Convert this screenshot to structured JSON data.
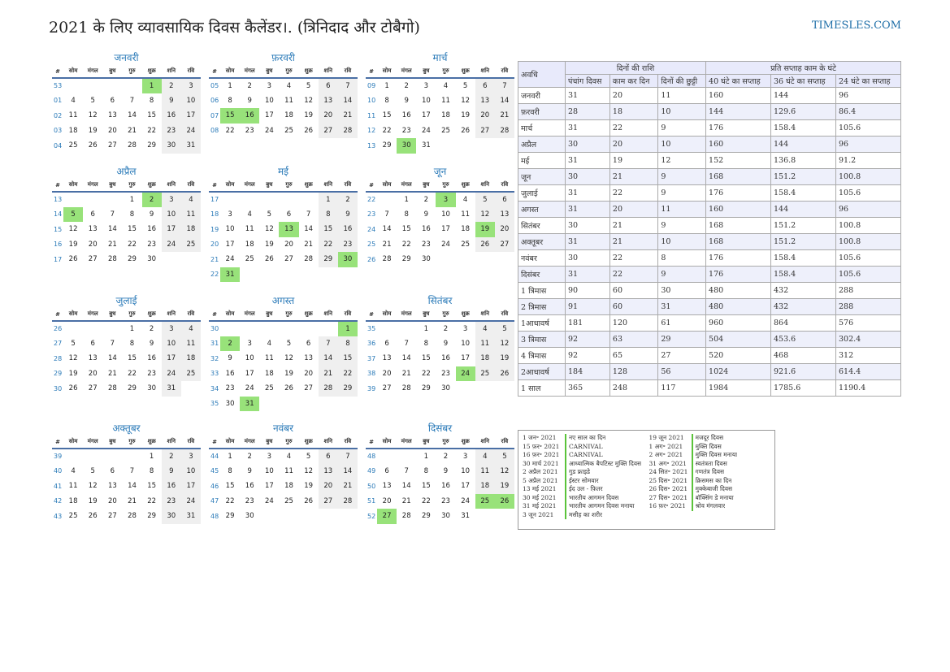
{
  "title": "2021 के लिए व्यावसायिक दिवस कैलेंडर।. (त्रिनिदाद और टोबैगो)",
  "site": "TIMESLES.COM",
  "weekday_headers": [
    "#",
    "सोम",
    "मंगल",
    "बुध",
    "गुरु",
    "शुक्र",
    "शनि",
    "रवि"
  ],
  "months": [
    {
      "name": "जनवरी",
      "weeks": [
        {
          "wk": "53",
          "days": [
            "",
            "",
            "",
            "",
            "1",
            "2",
            "3"
          ]
        },
        {
          "wk": "01",
          "days": [
            "4",
            "5",
            "6",
            "7",
            "8",
            "9",
            "10"
          ]
        },
        {
          "wk": "02",
          "days": [
            "11",
            "12",
            "13",
            "14",
            "15",
            "16",
            "17"
          ]
        },
        {
          "wk": "03",
          "days": [
            "18",
            "19",
            "20",
            "21",
            "22",
            "23",
            "24"
          ]
        },
        {
          "wk": "04",
          "days": [
            "25",
            "26",
            "27",
            "28",
            "29",
            "30",
            "31"
          ]
        }
      ],
      "holidays": [
        "1"
      ]
    },
    {
      "name": "फ़रवरी",
      "weeks": [
        {
          "wk": "05",
          "days": [
            "1",
            "2",
            "3",
            "4",
            "5",
            "6",
            "7"
          ]
        },
        {
          "wk": "06",
          "days": [
            "8",
            "9",
            "10",
            "11",
            "12",
            "13",
            "14"
          ]
        },
        {
          "wk": "07",
          "days": [
            "15",
            "16",
            "17",
            "18",
            "19",
            "20",
            "21"
          ]
        },
        {
          "wk": "08",
          "days": [
            "22",
            "23",
            "24",
            "25",
            "26",
            "27",
            "28"
          ]
        }
      ],
      "holidays": [
        "15",
        "16"
      ]
    },
    {
      "name": "मार्च",
      "weeks": [
        {
          "wk": "09",
          "days": [
            "1",
            "2",
            "3",
            "4",
            "5",
            "6",
            "7"
          ]
        },
        {
          "wk": "10",
          "days": [
            "8",
            "9",
            "10",
            "11",
            "12",
            "13",
            "14"
          ]
        },
        {
          "wk": "11",
          "days": [
            "15",
            "16",
            "17",
            "18",
            "19",
            "20",
            "21"
          ]
        },
        {
          "wk": "12",
          "days": [
            "22",
            "23",
            "24",
            "25",
            "26",
            "27",
            "28"
          ]
        },
        {
          "wk": "13",
          "days": [
            "29",
            "30",
            "31",
            "",
            "",
            "",
            ""
          ]
        }
      ],
      "holidays": [
        "30"
      ]
    },
    {
      "name": "अप्रैल",
      "weeks": [
        {
          "wk": "13",
          "days": [
            "",
            "",
            "",
            "1",
            "2",
            "3",
            "4"
          ]
        },
        {
          "wk": "14",
          "days": [
            "5",
            "6",
            "7",
            "8",
            "9",
            "10",
            "11"
          ]
        },
        {
          "wk": "15",
          "days": [
            "12",
            "13",
            "14",
            "15",
            "16",
            "17",
            "18"
          ]
        },
        {
          "wk": "16",
          "days": [
            "19",
            "20",
            "21",
            "22",
            "23",
            "24",
            "25"
          ]
        },
        {
          "wk": "17",
          "days": [
            "26",
            "27",
            "28",
            "29",
            "30",
            "",
            ""
          ]
        }
      ],
      "holidays": [
        "2",
        "5"
      ]
    },
    {
      "name": "मई",
      "weeks": [
        {
          "wk": "17",
          "days": [
            "",
            "",
            "",
            "",
            "",
            "1",
            "2"
          ]
        },
        {
          "wk": "18",
          "days": [
            "3",
            "4",
            "5",
            "6",
            "7",
            "8",
            "9"
          ]
        },
        {
          "wk": "19",
          "days": [
            "10",
            "11",
            "12",
            "13",
            "14",
            "15",
            "16"
          ]
        },
        {
          "wk": "20",
          "days": [
            "17",
            "18",
            "19",
            "20",
            "21",
            "22",
            "23"
          ]
        },
        {
          "wk": "21",
          "days": [
            "24",
            "25",
            "26",
            "27",
            "28",
            "29",
            "30"
          ]
        },
        {
          "wk": "22",
          "days": [
            "31",
            "",
            "",
            "",
            "",
            "",
            ""
          ]
        }
      ],
      "holidays": [
        "13",
        "30",
        "31"
      ]
    },
    {
      "name": "जून",
      "weeks": [
        {
          "wk": "22",
          "days": [
            "",
            "1",
            "2",
            "3",
            "4",
            "5",
            "6"
          ]
        },
        {
          "wk": "23",
          "days": [
            "7",
            "8",
            "9",
            "10",
            "11",
            "12",
            "13"
          ]
        },
        {
          "wk": "24",
          "days": [
            "14",
            "15",
            "16",
            "17",
            "18",
            "19",
            "20"
          ]
        },
        {
          "wk": "25",
          "days": [
            "21",
            "22",
            "23",
            "24",
            "25",
            "26",
            "27"
          ]
        },
        {
          "wk": "26",
          "days": [
            "28",
            "29",
            "30",
            "",
            "",
            "",
            ""
          ]
        }
      ],
      "holidays": [
        "3",
        "19"
      ]
    },
    {
      "name": "जुलाई",
      "weeks": [
        {
          "wk": "26",
          "days": [
            "",
            "",
            "",
            "1",
            "2",
            "3",
            "4"
          ]
        },
        {
          "wk": "27",
          "days": [
            "5",
            "6",
            "7",
            "8",
            "9",
            "10",
            "11"
          ]
        },
        {
          "wk": "28",
          "days": [
            "12",
            "13",
            "14",
            "15",
            "16",
            "17",
            "18"
          ]
        },
        {
          "wk": "29",
          "days": [
            "19",
            "20",
            "21",
            "22",
            "23",
            "24",
            "25"
          ]
        },
        {
          "wk": "30",
          "days": [
            "26",
            "27",
            "28",
            "29",
            "30",
            "31",
            ""
          ]
        }
      ],
      "holidays": []
    },
    {
      "name": "अगस्त",
      "weeks": [
        {
          "wk": "30",
          "days": [
            "",
            "",
            "",
            "",
            "",
            "",
            "1"
          ]
        },
        {
          "wk": "31",
          "days": [
            "2",
            "3",
            "4",
            "5",
            "6",
            "7",
            "8"
          ]
        },
        {
          "wk": "32",
          "days": [
            "9",
            "10",
            "11",
            "12",
            "13",
            "14",
            "15"
          ]
        },
        {
          "wk": "33",
          "days": [
            "16",
            "17",
            "18",
            "19",
            "20",
            "21",
            "22"
          ]
        },
        {
          "wk": "34",
          "days": [
            "23",
            "24",
            "25",
            "26",
            "27",
            "28",
            "29"
          ]
        },
        {
          "wk": "35",
          "days": [
            "30",
            "31",
            "",
            "",
            "",
            "",
            ""
          ]
        }
      ],
      "holidays": [
        "1",
        "2",
        "31"
      ]
    },
    {
      "name": "सितंबर",
      "weeks": [
        {
          "wk": "35",
          "days": [
            "",
            "",
            "1",
            "2",
            "3",
            "4",
            "5"
          ]
        },
        {
          "wk": "36",
          "days": [
            "6",
            "7",
            "8",
            "9",
            "10",
            "11",
            "12"
          ]
        },
        {
          "wk": "37",
          "days": [
            "13",
            "14",
            "15",
            "16",
            "17",
            "18",
            "19"
          ]
        },
        {
          "wk": "38",
          "days": [
            "20",
            "21",
            "22",
            "23",
            "24",
            "25",
            "26"
          ]
        },
        {
          "wk": "39",
          "days": [
            "27",
            "28",
            "29",
            "30",
            "",
            "",
            ""
          ]
        }
      ],
      "holidays": [
        "24"
      ]
    },
    {
      "name": "अक्तूबर",
      "weeks": [
        {
          "wk": "39",
          "days": [
            "",
            "",
            "",
            "",
            "1",
            "2",
            "3"
          ]
        },
        {
          "wk": "40",
          "days": [
            "4",
            "5",
            "6",
            "7",
            "8",
            "9",
            "10"
          ]
        },
        {
          "wk": "41",
          "days": [
            "11",
            "12",
            "13",
            "14",
            "15",
            "16",
            "17"
          ]
        },
        {
          "wk": "42",
          "days": [
            "18",
            "19",
            "20",
            "21",
            "22",
            "23",
            "24"
          ]
        },
        {
          "wk": "43",
          "days": [
            "25",
            "26",
            "27",
            "28",
            "29",
            "30",
            "31"
          ]
        }
      ],
      "holidays": []
    },
    {
      "name": "नवंबर",
      "weeks": [
        {
          "wk": "44",
          "days": [
            "1",
            "2",
            "3",
            "4",
            "5",
            "6",
            "7"
          ]
        },
        {
          "wk": "45",
          "days": [
            "8",
            "9",
            "10",
            "11",
            "12",
            "13",
            "14"
          ]
        },
        {
          "wk": "46",
          "days": [
            "15",
            "16",
            "17",
            "18",
            "19",
            "20",
            "21"
          ]
        },
        {
          "wk": "47",
          "days": [
            "22",
            "23",
            "24",
            "25",
            "26",
            "27",
            "28"
          ]
        },
        {
          "wk": "48",
          "days": [
            "29",
            "30",
            "",
            "",
            "",
            "",
            ""
          ]
        }
      ],
      "holidays": []
    },
    {
      "name": "दिसंबर",
      "weeks": [
        {
          "wk": "48",
          "days": [
            "",
            "",
            "1",
            "2",
            "3",
            "4",
            "5"
          ]
        },
        {
          "wk": "49",
          "days": [
            "6",
            "7",
            "8",
            "9",
            "10",
            "11",
            "12"
          ]
        },
        {
          "wk": "50",
          "days": [
            "13",
            "14",
            "15",
            "16",
            "17",
            "18",
            "19"
          ]
        },
        {
          "wk": "51",
          "days": [
            "20",
            "21",
            "22",
            "23",
            "24",
            "25",
            "26"
          ]
        },
        {
          "wk": "52",
          "days": [
            "27",
            "28",
            "29",
            "30",
            "31",
            "",
            ""
          ]
        }
      ],
      "holidays": [
        "25",
        "26",
        "27"
      ]
    }
  ],
  "stats": {
    "h_period": "अवधि",
    "h_days_group": "दिनों की राशि",
    "h_hours_group": "प्रति सप्ताह काम के घंटे",
    "cols": [
      "पंचांग दिवस",
      "काम कर दिन",
      "दिनों की छुट्टी",
      "40 घंटे का सप्ताह",
      "36 घंटे का सप्ताह",
      "24 घंटे का सप्ताह"
    ],
    "rows": [
      [
        "जनवरी",
        "31",
        "20",
        "11",
        "160",
        "144",
        "96"
      ],
      [
        "फ़रवरी",
        "28",
        "18",
        "10",
        "144",
        "129.6",
        "86.4"
      ],
      [
        "मार्च",
        "31",
        "22",
        "9",
        "176",
        "158.4",
        "105.6"
      ],
      [
        "अप्रैल",
        "30",
        "20",
        "10",
        "160",
        "144",
        "96"
      ],
      [
        "मई",
        "31",
        "19",
        "12",
        "152",
        "136.8",
        "91.2"
      ],
      [
        "जून",
        "30",
        "21",
        "9",
        "168",
        "151.2",
        "100.8"
      ],
      [
        "जुलाई",
        "31",
        "22",
        "9",
        "176",
        "158.4",
        "105.6"
      ],
      [
        "अगस्त",
        "31",
        "20",
        "11",
        "160",
        "144",
        "96"
      ],
      [
        "सितंबर",
        "30",
        "21",
        "9",
        "168",
        "151.2",
        "100.8"
      ],
      [
        "अक्तूबर",
        "31",
        "21",
        "10",
        "168",
        "151.2",
        "100.8"
      ],
      [
        "नवंबर",
        "30",
        "22",
        "8",
        "176",
        "158.4",
        "105.6"
      ],
      [
        "दिसंबर",
        "31",
        "22",
        "9",
        "176",
        "158.4",
        "105.6"
      ],
      [
        "1 त्रिमास",
        "90",
        "60",
        "30",
        "480",
        "432",
        "288"
      ],
      [
        "2 त्रिमास",
        "91",
        "60",
        "31",
        "480",
        "432",
        "288"
      ],
      [
        "1आधावर्ष",
        "181",
        "120",
        "61",
        "960",
        "864",
        "576"
      ],
      [
        "3 त्रिमास",
        "92",
        "63",
        "29",
        "504",
        "453.6",
        "302.4"
      ],
      [
        "4 त्रिमास",
        "92",
        "65",
        "27",
        "520",
        "468",
        "312"
      ],
      [
        "2आधावर्ष",
        "184",
        "128",
        "56",
        "1024",
        "921.6",
        "614.4"
      ],
      [
        "1 साल",
        "365",
        "248",
        "117",
        "1984",
        "1785.6",
        "1190.4"
      ]
    ]
  },
  "legend": {
    "col1": [
      {
        "date": "1 जन॰ 2021",
        "name": "नए साल का दिन"
      },
      {
        "date": "15 फ़र॰ 2021",
        "name": "CARNIVAL"
      },
      {
        "date": "16 फ़र॰ 2021",
        "name": "CARNIVAL"
      },
      {
        "date": "30 मार्च 2021",
        "name": "आध्यात्मिक बैपटिस्ट मुक्ति दिवस"
      },
      {
        "date": "2 अप्रैल 2021",
        "name": "गुड फ्राइडे"
      },
      {
        "date": "5 अप्रैल 2021",
        "name": "ईस्टर सोमवार"
      },
      {
        "date": "13 मई 2021",
        "name": "ईद उल - फ़ितर"
      },
      {
        "date": "30 मई 2021",
        "name": "भारतीय आगमन दिवस"
      },
      {
        "date": "31 मई 2021",
        "name": "भारतीय आगमन दिवस मनाया"
      },
      {
        "date": "3 जून 2021",
        "name": "मसीह का शरीर"
      }
    ],
    "col2": [
      {
        "date": "19 जून 2021",
        "name": "मजदूर दिवस"
      },
      {
        "date": "1 अग॰ 2021",
        "name": "मुक्ति दिवस"
      },
      {
        "date": "2 अग॰ 2021",
        "name": "मुक्ति दिवस मनाया"
      },
      {
        "date": "31 अग॰ 2021",
        "name": "स्वतंत्रता दिवस"
      },
      {
        "date": "24 सित॰ 2021",
        "name": "गणतंत्र दिवस"
      },
      {
        "date": "25 दिस॰ 2021",
        "name": "क्रिसमस का दिन"
      },
      {
        "date": "26 दिस॰ 2021",
        "name": "मुक्केबाजी दिवस"
      },
      {
        "date": "27 दिस॰ 2021",
        "name": "बॉक्सिंग डे मनाया"
      },
      {
        "date": "16 फ़र॰ 2021",
        "name": "श्रोव मंगलवार"
      }
    ]
  }
}
